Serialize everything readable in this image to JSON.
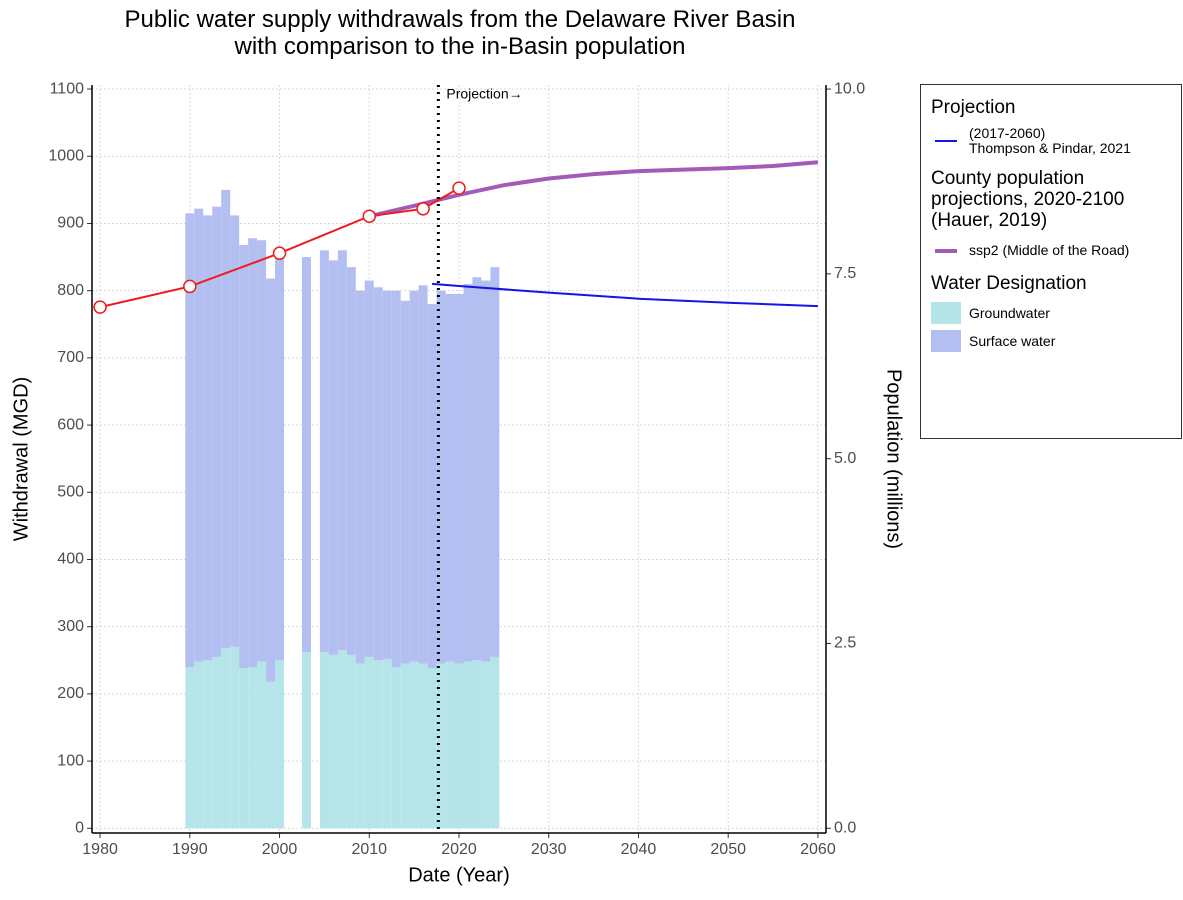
{
  "chart_data": {
    "type": "bar",
    "title": "Public water supply withdrawals from the Delaware River Basin\nwith comparison to the in-Basin population",
    "x_label": "Date (Year)",
    "y_label": "Withdrawal (MGD)",
    "y2_label": "Population (millions)",
    "annotation": "Projection→",
    "projection_start": 2017.7,
    "xlim": [
      1979.1,
      2060.9
    ],
    "xticks": [
      1980,
      1990,
      2000,
      2010,
      2020,
      2030,
      2040,
      2050,
      2060
    ],
    "ylim": [
      -7,
      1106
    ],
    "yticks": [
      0,
      100,
      200,
      300,
      400,
      500,
      600,
      700,
      800,
      900,
      1000,
      1100
    ],
    "y2lim": [
      -0.064,
      10.055
    ],
    "y2ticks": [
      {
        "value": 0,
        "label": "0.0"
      },
      {
        "value": 2.5,
        "label": "2.5"
      },
      {
        "value": 5,
        "label": "5.0"
      },
      {
        "value": 7.5,
        "label": "7.5"
      },
      {
        "value": 10,
        "label": "10.0"
      }
    ],
    "grid": true,
    "series": [
      {
        "name": "Groundwater",
        "type": "bar",
        "color": "#b5e5e9",
        "x": [
          1990,
          1991,
          1992,
          1993,
          1994,
          1995,
          1996,
          1997,
          1998,
          1999,
          2000,
          2003,
          2005,
          2006,
          2007,
          2008,
          2009,
          2010,
          2011,
          2012,
          2013,
          2014,
          2015,
          2016,
          2017,
          2018,
          2019,
          2020,
          2021,
          2022,
          2023,
          2024
        ],
        "values": [
          240,
          248,
          250,
          255,
          268,
          270,
          238,
          240,
          248,
          218,
          250,
          262,
          262,
          258,
          265,
          258,
          245,
          255,
          250,
          252,
          240,
          245,
          248,
          245,
          238,
          245,
          248,
          245,
          248,
          250,
          248,
          255
        ]
      },
      {
        "name": "Surface water",
        "type": "bar",
        "color": "#b3bff0",
        "x": [
          1990,
          1991,
          1992,
          1993,
          1994,
          1995,
          1996,
          1997,
          1998,
          1999,
          2000,
          2003,
          2005,
          2006,
          2007,
          2008,
          2009,
          2010,
          2011,
          2012,
          2013,
          2014,
          2015,
          2016,
          2017,
          2018,
          2019,
          2020,
          2021,
          2022,
          2023,
          2024
        ],
        "values": [
          675,
          674,
          662,
          670,
          682,
          642,
          630,
          638,
          627,
          600,
          605,
          588,
          598,
          587,
          595,
          577,
          555,
          560,
          555,
          548,
          560,
          540,
          552,
          563,
          542,
          555,
          547,
          550,
          562,
          570,
          567,
          580
        ]
      },
      {
        "name": "(2017-2060)\nThompson & Pindar, 2021",
        "type": "line",
        "color": "#1414e6",
        "x": [
          2017,
          2020,
          2030,
          2040,
          2050,
          2060
        ],
        "values": [
          810,
          807,
          797,
          788,
          782,
          777
        ]
      },
      {
        "name": "ssp2 (Middle of the Road)",
        "type": "line",
        "axis": "y2",
        "color": "#a35bb8",
        "x": [
          2010,
          2015,
          2020,
          2025,
          2030,
          2035,
          2040,
          2045,
          2050,
          2055,
          2060
        ],
        "values": [
          8.28,
          8.42,
          8.57,
          8.7,
          8.79,
          8.85,
          8.89,
          8.91,
          8.93,
          8.96,
          9.01
        ]
      },
      {
        "type": "line",
        "axis": "y2",
        "color": "#ee1c1c",
        "markers": true,
        "x": [
          1980,
          1990,
          2000,
          2010,
          2016,
          2020
        ],
        "values": [
          7.05,
          7.33,
          7.78,
          8.28,
          8.38,
          8.66
        ]
      }
    ],
    "legend": {
      "position": "right",
      "groups": [
        {
          "title": "Projection",
          "series": [
            2
          ]
        },
        {
          "title": "County population\nprojections, 2020-2100\n(Hauer, 2019)",
          "series": [
            3
          ]
        },
        {
          "title": "Water Designation",
          "series": [
            0,
            1
          ]
        }
      ]
    }
  }
}
